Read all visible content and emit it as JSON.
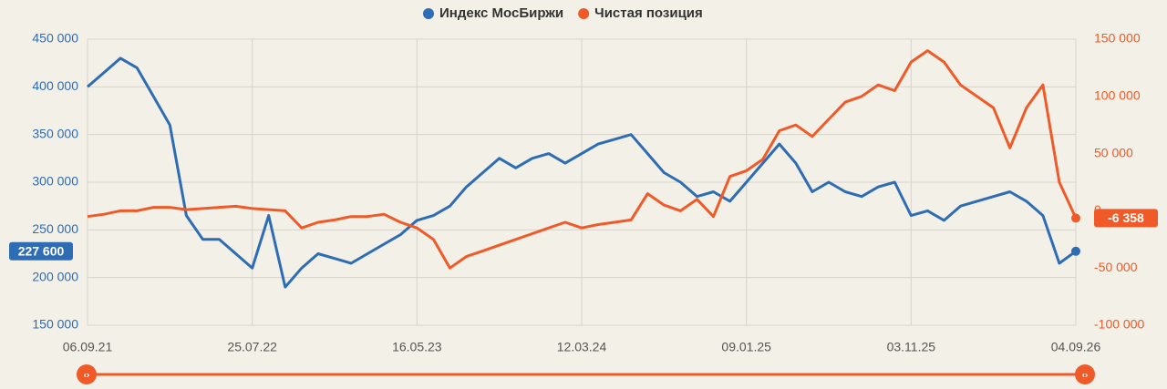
{
  "chart_data": {
    "type": "line",
    "categories": [
      "06.09.21",
      null,
      null,
      null,
      null,
      null,
      null,
      null,
      null,
      null,
      "25.07.22",
      null,
      null,
      null,
      null,
      null,
      null,
      null,
      null,
      null,
      "16.05.23",
      null,
      null,
      null,
      null,
      null,
      null,
      null,
      null,
      null,
      "12.03.24",
      null,
      null,
      null,
      null,
      null,
      null,
      null,
      null,
      null,
      "09.01.25",
      null,
      null,
      null,
      null,
      null,
      null,
      null,
      null,
      null,
      "03.11.25",
      null,
      null,
      null,
      null,
      null,
      null,
      null,
      null,
      null,
      "04.09.26"
    ],
    "series": [
      {
        "name": "Индекс МосБиржи",
        "color": "#2e6db4",
        "axis": "y",
        "values": [
          400000,
          415000,
          430000,
          420000,
          390000,
          360000,
          265000,
          240000,
          240000,
          225000,
          210000,
          265000,
          190000,
          210000,
          225000,
          220000,
          215000,
          225000,
          235000,
          245000,
          260000,
          265000,
          275000,
          295000,
          310000,
          325000,
          315000,
          325000,
          330000,
          320000,
          330000,
          340000,
          345000,
          350000,
          330000,
          310000,
          300000,
          285000,
          290000,
          280000,
          300000,
          320000,
          340000,
          320000,
          290000,
          300000,
          290000,
          285000,
          295000,
          300000,
          265000,
          270000,
          260000,
          275000,
          280000,
          285000,
          290000,
          280000,
          265000,
          215000,
          227600
        ],
        "value_labels": [
          null,
          null,
          null,
          null,
          null,
          null,
          null,
          null,
          null,
          null,
          null,
          null,
          null,
          null,
          null,
          null,
          null,
          null,
          null,
          null,
          null,
          null,
          null,
          null,
          null,
          null,
          null,
          null,
          null,
          null,
          null,
          null,
          null,
          null,
          null,
          null,
          null,
          null,
          null,
          null,
          null,
          null,
          null,
          null,
          null,
          null,
          null,
          null,
          null,
          null,
          null,
          null,
          null,
          null,
          null,
          null,
          null,
          null,
          null,
          null,
          "227 600"
        ]
      },
      {
        "name": "Чистая позиция",
        "color": "#f05a28",
        "axis": "y2",
        "values": [
          -5000,
          -3000,
          0,
          0,
          3000,
          3000,
          1000,
          2000,
          3000,
          4000,
          2000,
          1000,
          0,
          -15000,
          -10000,
          -8000,
          -5000,
          -5000,
          -3000,
          -10000,
          -15000,
          -25000,
          -50000,
          -40000,
          -35000,
          -30000,
          -25000,
          -20000,
          -15000,
          -10000,
          -15000,
          -12000,
          -10000,
          -8000,
          15000,
          5000,
          0,
          10000,
          -5000,
          30000,
          35000,
          45000,
          70000,
          75000,
          65000,
          80000,
          95000,
          100000,
          110000,
          105000,
          130000,
          140000,
          130000,
          110000,
          100000,
          90000,
          55000,
          90000,
          110000,
          25000,
          -6358
        ],
        "value_labels": [
          null,
          null,
          null,
          null,
          null,
          null,
          null,
          null,
          null,
          null,
          null,
          null,
          null,
          null,
          null,
          null,
          null,
          null,
          null,
          null,
          null,
          null,
          null,
          null,
          null,
          null,
          null,
          null,
          null,
          null,
          null,
          null,
          null,
          null,
          null,
          null,
          null,
          null,
          null,
          null,
          null,
          null,
          null,
          null,
          null,
          null,
          null,
          null,
          null,
          null,
          null,
          null,
          null,
          null,
          null,
          null,
          null,
          null,
          null,
          null,
          "-6 358"
        ]
      }
    ],
    "ylim": [
      150000,
      450000
    ],
    "yticks": [
      {
        "value": 150000,
        "label": "150 000"
      },
      {
        "value": 200000,
        "label": "200 000"
      },
      {
        "value": 250000,
        "label": "250 000"
      },
      {
        "value": 300000,
        "label": "300 000"
      },
      {
        "value": 350000,
        "label": "350 000"
      },
      {
        "value": 400000,
        "label": "400 000"
      },
      {
        "value": 450000,
        "label": "450 000"
      }
    ],
    "y2lim": [
      -100000,
      150000
    ],
    "y2ticks": [
      {
        "value": -100000,
        "label": "-100 000"
      },
      {
        "value": -50000,
        "label": "-50 000"
      },
      {
        "value": 0,
        "label": "0"
      },
      {
        "value": 50000,
        "label": "50 000"
      },
      {
        "value": 100000,
        "label": "100 000"
      },
      {
        "value": 150000,
        "label": "150 000"
      }
    ],
    "grid": true
  }
}
